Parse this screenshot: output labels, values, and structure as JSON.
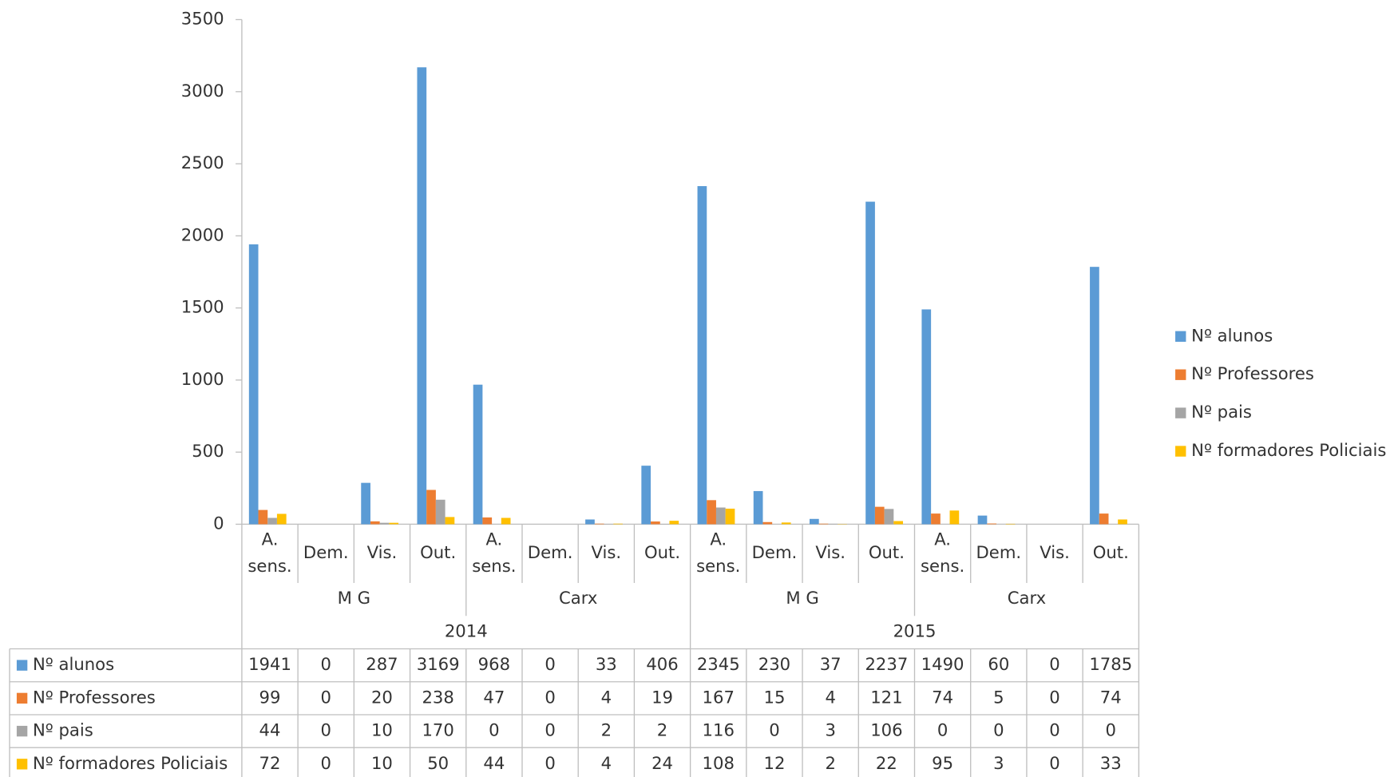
{
  "chart_data": {
    "type": "bar",
    "categories": [
      "A. sens.",
      "Dem.",
      "Vis.",
      "Out.",
      "A. sens.",
      "Dem.",
      "Vis.",
      "Out.",
      "A. sens.",
      "Dem.",
      "Vis.",
      "Out.",
      "A. sens.",
      "Dem.",
      "Vis.",
      "Out."
    ],
    "groups": [
      "M G",
      "Carx",
      "M G",
      "Carx"
    ],
    "years": [
      "2014",
      "2015"
    ],
    "series": [
      {
        "name": "Nº alunos",
        "color": "#5b9bd5",
        "values": [
          1941,
          0,
          287,
          3169,
          968,
          0,
          33,
          406,
          2345,
          230,
          37,
          2237,
          1490,
          60,
          0,
          1785
        ]
      },
      {
        "name": "Nº Professores",
        "color": "#ed7d31",
        "values": [
          99,
          0,
          20,
          238,
          47,
          0,
          4,
          19,
          167,
          15,
          4,
          121,
          74,
          5,
          0,
          74
        ]
      },
      {
        "name": "Nº pais",
        "color": "#a5a5a5",
        "values": [
          44,
          0,
          10,
          170,
          0,
          0,
          2,
          2,
          116,
          0,
          3,
          106,
          0,
          0,
          0,
          0
        ]
      },
      {
        "name": "Nº formadores Policiais",
        "color": "#ffc000",
        "values": [
          72,
          0,
          10,
          50,
          44,
          0,
          4,
          24,
          108,
          12,
          2,
          22,
          95,
          3,
          0,
          33
        ]
      }
    ],
    "ylim": [
      0,
      3500
    ],
    "yticks": [
      0,
      500,
      1000,
      1500,
      2000,
      2500,
      3000,
      3500
    ],
    "grid": false,
    "legend": "right",
    "data_table": true
  }
}
